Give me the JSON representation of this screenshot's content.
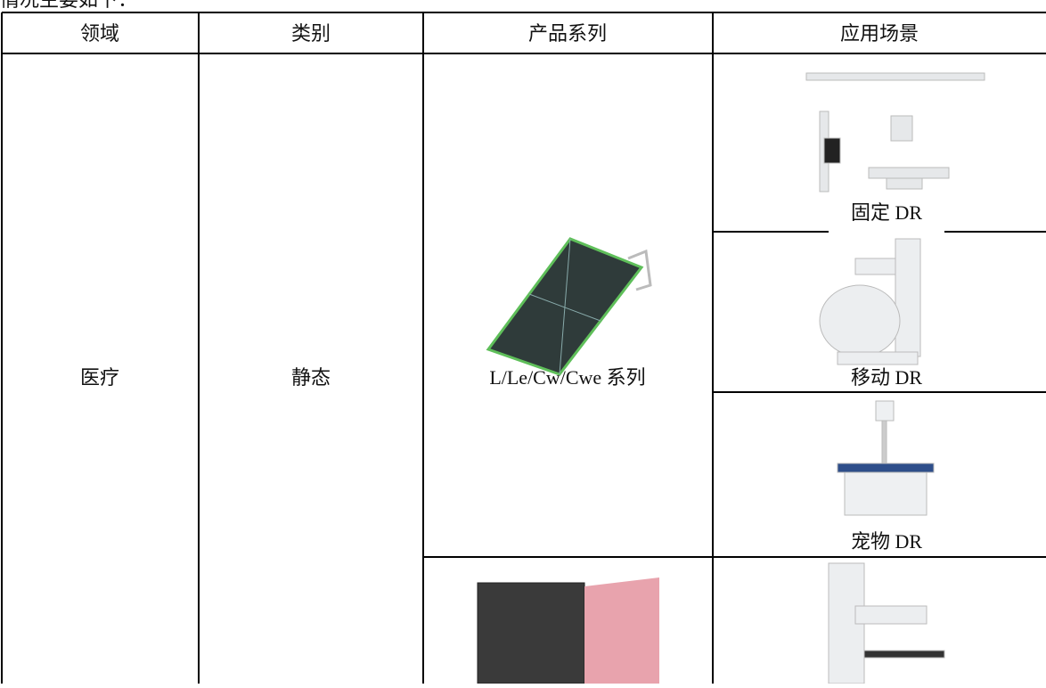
{
  "intro": "情况主要如下：",
  "table": {
    "headers": [
      "领域",
      "类别",
      "产品系列",
      "应用场景"
    ],
    "domain": "医疗",
    "category": "静态",
    "product": "L/Le/Cw/Cwe 系列",
    "scenarios": [
      "固定 DR",
      "移动 DR",
      "宠物 DR"
    ]
  }
}
